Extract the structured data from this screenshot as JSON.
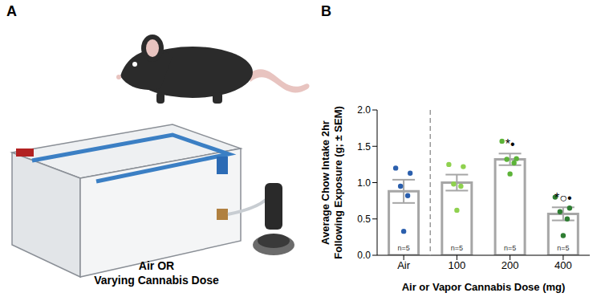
{
  "panel_a": {
    "label": "A",
    "caption": [
      "Air OR",
      "Varying Cannabis Dose"
    ]
  },
  "chart_data": {
    "type": "bar",
    "panel_label": "B",
    "categories": [
      "Air",
      "100",
      "200",
      "400"
    ],
    "values": [
      0.88,
      1.0,
      1.32,
      0.57
    ],
    "errors": [
      0.16,
      0.11,
      0.08,
      0.09
    ],
    "points": [
      [
        1.2,
        1.13,
        0.95,
        0.82,
        0.33
      ],
      [
        1.25,
        1.22,
        0.98,
        0.95,
        0.62
      ],
      [
        1.57,
        1.33,
        1.32,
        1.27,
        1.12
      ],
      [
        0.8,
        0.65,
        0.6,
        0.5,
        0.27
      ]
    ],
    "n_labels": [
      "n=5",
      "n=5",
      "n=5",
      "n=5"
    ],
    "annotations": [
      null,
      null,
      "*•",
      "*○•"
    ],
    "color": "#a6a6a6",
    "colors": [
      "#2b5fad",
      "#8fd14f",
      "#5cb338",
      "#2e7d32"
    ],
    "marker": "circle",
    "ylabel": [
      "Average Chow Intake 2hr",
      "Following Exposure (g; ± SEM)"
    ],
    "xlabel": "Air or Vapor Cannabis Dose (mg)",
    "ylim": [
      0,
      2
    ],
    "yticks": [
      {
        "value": 0,
        "label": "0.0"
      },
      {
        "value": 0.5,
        "label": "0.5"
      },
      {
        "value": 1,
        "label": "1.0"
      },
      {
        "value": 1.5,
        "label": "1.5"
      },
      {
        "value": 2,
        "label": "2.0"
      }
    ]
  }
}
